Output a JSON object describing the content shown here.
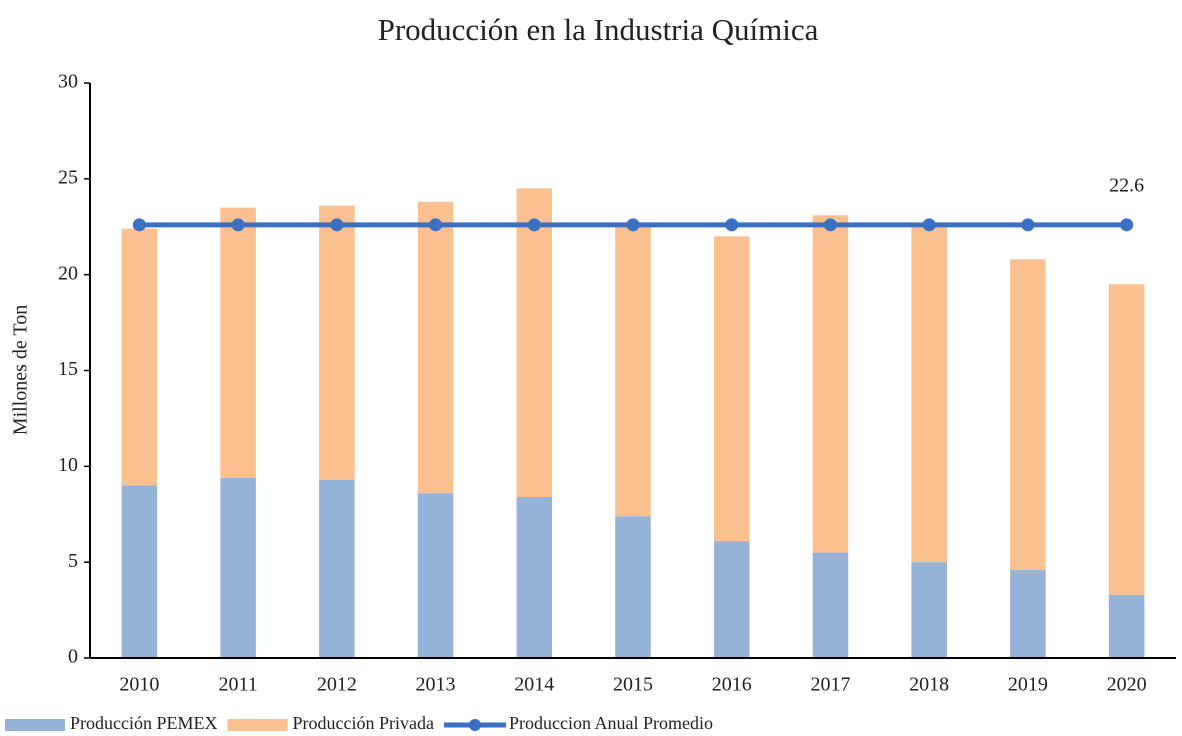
{
  "chart_data": {
    "type": "bar",
    "stacked": true,
    "title": "Producción en la Industria Química",
    "y_label": "Millones de Ton",
    "categories": [
      "2010",
      "2011",
      "2012",
      "2013",
      "2014",
      "2015",
      "2016",
      "2017",
      "2018",
      "2019",
      "2020"
    ],
    "series": [
      {
        "name": "Producción PEMEX",
        "type": "bar",
        "color": "#95b3d7",
        "values": [
          9.0,
          9.4,
          9.3,
          8.6,
          8.4,
          7.4,
          6.1,
          5.5,
          5.0,
          4.6,
          3.3
        ]
      },
      {
        "name": "Producción Privada",
        "type": "bar",
        "color": "#fac090",
        "values": [
          13.4,
          14.1,
          14.3,
          15.2,
          16.1,
          15.2,
          15.9,
          17.6,
          17.7,
          16.2,
          16.2
        ]
      },
      {
        "name": "Produccion Anual Promedio",
        "type": "line",
        "color": "#3a70c3",
        "values": [
          22.6,
          22.6,
          22.6,
          22.6,
          22.6,
          22.6,
          22.6,
          22.6,
          22.6,
          22.6,
          22.6
        ]
      }
    ],
    "ylim": [
      0,
      30
    ],
    "yticks": [
      0,
      5,
      10,
      15,
      20,
      25,
      30
    ],
    "grid": false,
    "legend": "bottom-left"
  }
}
